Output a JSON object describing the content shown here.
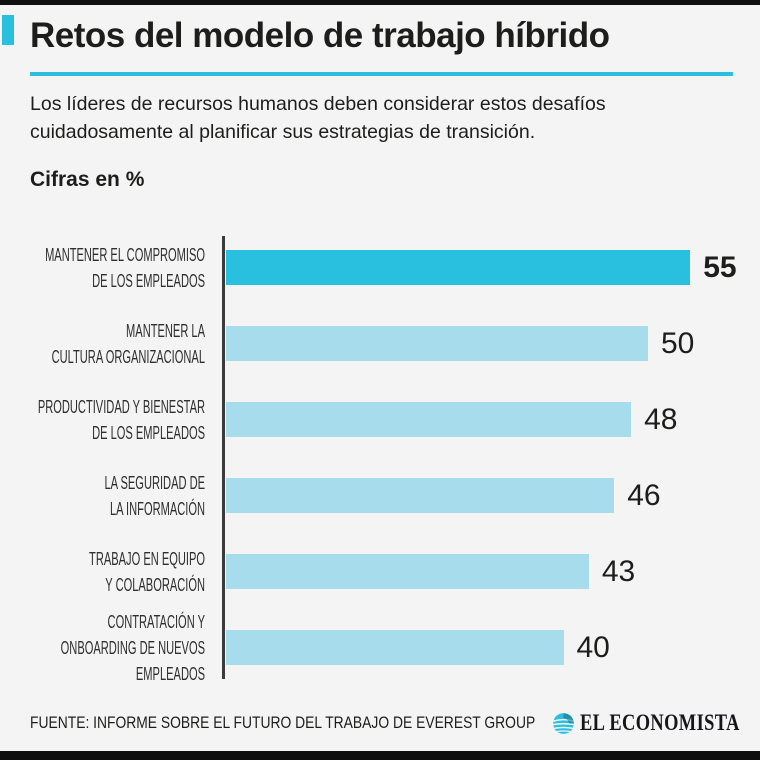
{
  "page": {
    "background": "#f4f4f5",
    "edge_bar_color": "#0f0f0f",
    "accent_color": "#29bfdf"
  },
  "header": {
    "title": "Retos del modelo de trabajo híbrido",
    "subtitle_lines": [
      "Los líderes de recursos humanos deben considerar estos desafíos",
      "cuidadosamente al planificar sus estrategias de transición."
    ],
    "units_label": "Cifras en %"
  },
  "chart_data": {
    "type": "bar",
    "orientation": "horizontal",
    "title": "Retos del modelo de trabajo híbrido",
    "units": "Cifras en %",
    "categories": [
      "MANTENER EL COMPROMISO DE LOS EMPLEADOS",
      "MANTENER LA CULTURA ORGANIZACIONAL",
      "PRODUCTIVIDAD Y BIENESTAR DE LOS EMPLEADOS",
      "LA SEGURIDAD DE LA INFORMACIÓN",
      "TRABAJO EN EQUIPO Y COLABORACIÓN",
      "CONTRATACIÓN Y ONBOARDING DE NUEVOS EMPLEADOS"
    ],
    "category_lines": [
      [
        "MANTENER EL COMPROMISO",
        "DE LOS EMPLEADOS"
      ],
      [
        "MANTENER LA",
        "CULTURA ORGANIZACIONAL"
      ],
      [
        "PRODUCTIVIDAD Y BIENESTAR",
        "DE LOS EMPLEADOS"
      ],
      [
        "LA SEGURIDAD DE",
        "LA INFORMACIÓN"
      ],
      [
        "TRABAJO EN EQUIPO",
        "Y COLABORACIÓN"
      ],
      [
        "CONTRATACIÓN Y",
        "ONBOARDING DE NUEVOS",
        "EMPLEADOS"
      ]
    ],
    "values": [
      55,
      50,
      48,
      46,
      43,
      40
    ],
    "value_labels": [
      "55",
      "50",
      "48",
      "46",
      "43",
      "40"
    ],
    "highlight_index": 0,
    "xlim": [
      0,
      60
    ],
    "grid": false,
    "legend": false,
    "colors": {
      "bar": "#a6dcec",
      "highlight": "#29bfdf",
      "axis": "#3b3b3b",
      "label_text": "#2e2e2e",
      "value_text": "#1d1d1b"
    }
  },
  "footer": {
    "source": "FUENTE: INFORME SOBRE EL FUTURO DEL TRABAJO DE EVEREST GROUP",
    "brand": "EL ECONOMISTA"
  }
}
